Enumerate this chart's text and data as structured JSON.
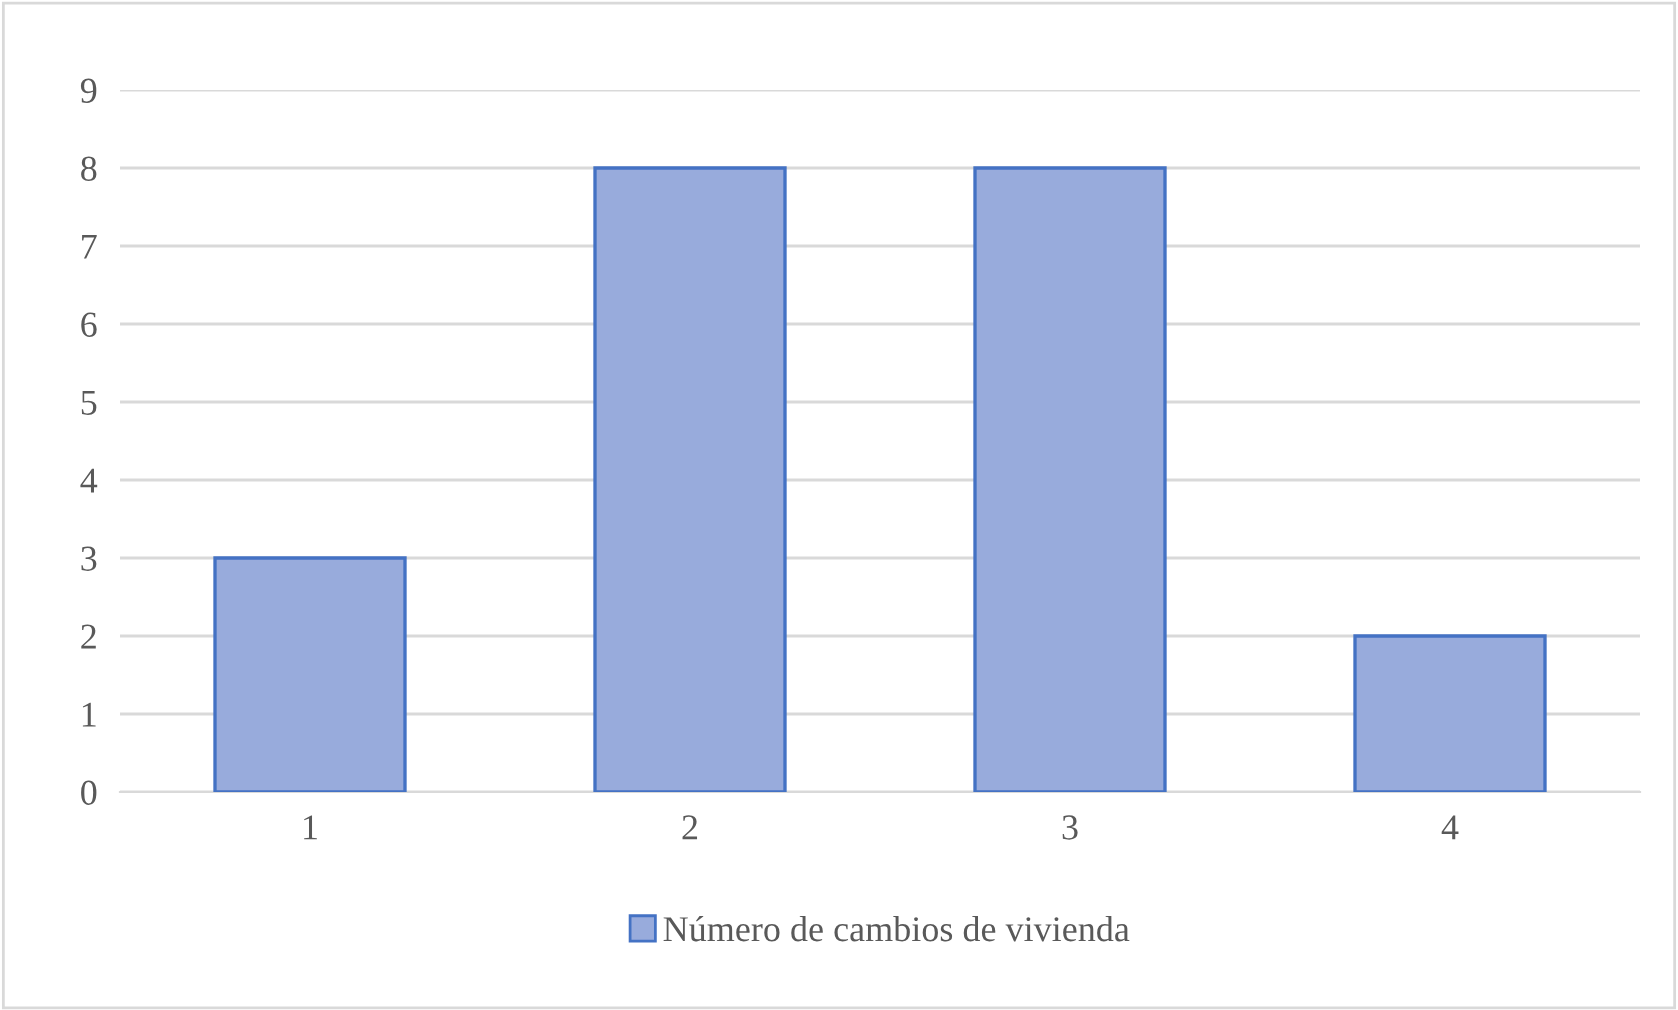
{
  "chart_data": {
    "type": "bar",
    "categories": [
      "1",
      "2",
      "3",
      "4"
    ],
    "series": [
      {
        "name": "Número de cambios de vivienda",
        "color": "#98abdc",
        "values": [
          3,
          8,
          8,
          2
        ]
      }
    ],
    "ylim": [
      0,
      9
    ],
    "yticks": [
      0,
      1,
      2,
      3,
      4,
      5,
      6,
      7,
      8,
      9
    ],
    "grid": "y",
    "legend": "bottom"
  }
}
